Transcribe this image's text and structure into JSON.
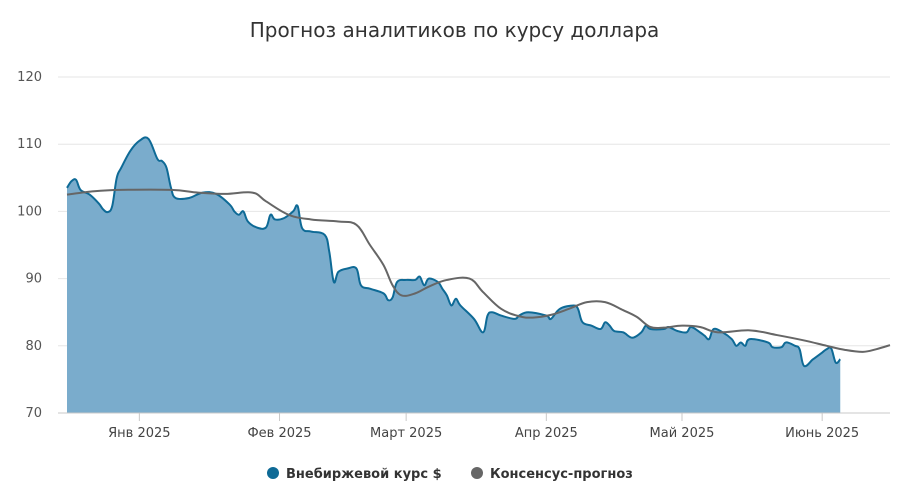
{
  "chart_data": {
    "type": "area",
    "title": "Прогноз аналитиков по курсу доллара",
    "xlabel": "",
    "ylabel": "",
    "ylim": [
      70,
      120
    ],
    "y_ticks": [
      70,
      80,
      90,
      100,
      110,
      120
    ],
    "x_tick_labels": [
      "Янв 2025",
      "Фев 2025",
      "Март 2025",
      "Апр 2025",
      "Май 2025",
      "Июнь 2025"
    ],
    "x_tick_dates": [
      "2025-01-01",
      "2025-02-01",
      "2025-03-01",
      "2025-04-01",
      "2025-05-01",
      "2025-06-01"
    ],
    "x_range": [
      "2024-12-16",
      "2025-06-16"
    ],
    "grid": true,
    "legend_position": "bottom",
    "series": [
      {
        "name": "Внебиржевой курс $",
        "type": "area",
        "color": "#0e6a96",
        "fill": "#7aaccc",
        "points": [
          [
            "2024-12-16",
            103.5
          ],
          [
            "2024-12-17",
            104.5
          ],
          [
            "2024-12-18",
            104.7
          ],
          [
            "2024-12-19",
            103.2
          ],
          [
            "2024-12-21",
            102.5
          ],
          [
            "2024-12-23",
            101.2
          ],
          [
            "2024-12-24",
            100.3
          ],
          [
            "2024-12-25",
            99.9
          ],
          [
            "2024-12-26",
            100.8
          ],
          [
            "2024-12-27",
            105.0
          ],
          [
            "2024-12-28",
            106.5
          ],
          [
            "2024-12-30",
            109.0
          ],
          [
            "2025-01-01",
            110.5
          ],
          [
            "2025-01-03",
            110.8
          ],
          [
            "2025-01-05",
            107.8
          ],
          [
            "2025-01-06",
            107.5
          ],
          [
            "2025-01-07",
            106.5
          ],
          [
            "2025-01-08",
            103.5
          ],
          [
            "2025-01-09",
            102.0
          ],
          [
            "2025-01-12",
            102.0
          ],
          [
            "2025-01-15",
            102.8
          ],
          [
            "2025-01-18",
            102.6
          ],
          [
            "2025-01-21",
            101.0
          ],
          [
            "2025-01-22",
            100.0
          ],
          [
            "2025-01-23",
            99.5
          ],
          [
            "2025-01-24",
            100.0
          ],
          [
            "2025-01-25",
            98.5
          ],
          [
            "2025-01-27",
            97.6
          ],
          [
            "2025-01-29",
            97.6
          ],
          [
            "2025-01-30",
            99.5
          ],
          [
            "2025-01-31",
            98.8
          ],
          [
            "2025-02-02",
            99.0
          ],
          [
            "2025-02-04",
            100.0
          ],
          [
            "2025-02-05",
            100.8
          ],
          [
            "2025-02-06",
            97.5
          ],
          [
            "2025-02-08",
            97.0
          ],
          [
            "2025-02-11",
            96.5
          ],
          [
            "2025-02-12",
            94.0
          ],
          [
            "2025-02-13",
            89.5
          ],
          [
            "2025-02-14",
            91.0
          ],
          [
            "2025-02-16",
            91.5
          ],
          [
            "2025-02-18",
            91.5
          ],
          [
            "2025-02-19",
            89.0
          ],
          [
            "2025-02-21",
            88.5
          ],
          [
            "2025-02-24",
            87.8
          ],
          [
            "2025-02-25",
            86.8
          ],
          [
            "2025-02-26",
            87.2
          ],
          [
            "2025-02-27",
            89.5
          ],
          [
            "2025-03-01",
            89.8
          ],
          [
            "2025-03-03",
            89.8
          ],
          [
            "2025-03-04",
            90.3
          ],
          [
            "2025-03-05",
            89.0
          ],
          [
            "2025-03-06",
            90.0
          ],
          [
            "2025-03-08",
            89.5
          ],
          [
            "2025-03-09",
            88.5
          ],
          [
            "2025-03-10",
            87.5
          ],
          [
            "2025-03-11",
            86.0
          ],
          [
            "2025-03-12",
            87.0
          ],
          [
            "2025-03-13",
            86.0
          ],
          [
            "2025-03-16",
            84.0
          ],
          [
            "2025-03-18",
            82.0
          ],
          [
            "2025-03-19",
            84.5
          ],
          [
            "2025-03-20",
            85.0
          ],
          [
            "2025-03-22",
            84.5
          ],
          [
            "2025-03-25",
            84.0
          ],
          [
            "2025-03-26",
            84.5
          ],
          [
            "2025-03-28",
            85.0
          ],
          [
            "2025-04-01",
            84.5
          ],
          [
            "2025-04-02",
            84.0
          ],
          [
            "2025-04-04",
            85.5
          ],
          [
            "2025-04-07",
            86.0
          ],
          [
            "2025-04-08",
            85.5
          ],
          [
            "2025-04-09",
            83.5
          ],
          [
            "2025-04-11",
            83.0
          ],
          [
            "2025-04-13",
            82.5
          ],
          [
            "2025-04-14",
            83.5
          ],
          [
            "2025-04-15",
            83.0
          ],
          [
            "2025-04-16",
            82.2
          ],
          [
            "2025-04-18",
            82.0
          ],
          [
            "2025-04-20",
            81.2
          ],
          [
            "2025-04-22",
            82.0
          ],
          [
            "2025-04-23",
            83.0
          ],
          [
            "2025-04-24",
            82.5
          ],
          [
            "2025-04-27",
            82.5
          ],
          [
            "2025-04-28",
            82.8
          ],
          [
            "2025-04-30",
            82.2
          ],
          [
            "2025-05-02",
            82.0
          ],
          [
            "2025-05-03",
            82.8
          ],
          [
            "2025-05-05",
            82.0
          ],
          [
            "2025-05-06",
            81.5
          ],
          [
            "2025-05-07",
            81.0
          ],
          [
            "2025-05-08",
            82.5
          ],
          [
            "2025-05-10",
            82.0
          ],
          [
            "2025-05-12",
            81.0
          ],
          [
            "2025-05-13",
            80.0
          ],
          [
            "2025-05-14",
            80.5
          ],
          [
            "2025-05-15",
            80.0
          ],
          [
            "2025-05-16",
            81.0
          ],
          [
            "2025-05-20",
            80.5
          ],
          [
            "2025-05-21",
            79.8
          ],
          [
            "2025-05-23",
            79.8
          ],
          [
            "2025-05-24",
            80.5
          ],
          [
            "2025-05-26",
            80.0
          ],
          [
            "2025-05-27",
            79.5
          ],
          [
            "2025-05-28",
            77.0
          ],
          [
            "2025-05-30",
            78.0
          ],
          [
            "2025-06-01",
            79.0
          ],
          [
            "2025-06-02",
            79.5
          ],
          [
            "2025-06-03",
            79.6
          ],
          [
            "2025-06-04",
            77.5
          ],
          [
            "2025-06-05",
            78.0
          ]
        ]
      },
      {
        "name": "Консенсус-прогноз",
        "type": "line",
        "color": "#666666",
        "points": [
          [
            "2024-12-16",
            102.5
          ],
          [
            "2024-12-22",
            103.0
          ],
          [
            "2024-12-28",
            103.2
          ],
          [
            "2025-01-08",
            103.2
          ],
          [
            "2025-01-14",
            102.8
          ],
          [
            "2025-01-20",
            102.6
          ],
          [
            "2025-01-26",
            102.8
          ],
          [
            "2025-01-29",
            101.5
          ],
          [
            "2025-02-03",
            99.5
          ],
          [
            "2025-02-08",
            98.8
          ],
          [
            "2025-02-14",
            98.5
          ],
          [
            "2025-02-18",
            98.0
          ],
          [
            "2025-02-21",
            95.0
          ],
          [
            "2025-02-24",
            92.0
          ],
          [
            "2025-02-26",
            89.0
          ],
          [
            "2025-02-28",
            87.5
          ],
          [
            "2025-03-03",
            87.8
          ],
          [
            "2025-03-06",
            88.8
          ],
          [
            "2025-03-10",
            89.8
          ],
          [
            "2025-03-15",
            90.0
          ],
          [
            "2025-03-18",
            88.0
          ],
          [
            "2025-03-22",
            85.5
          ],
          [
            "2025-03-26",
            84.4
          ],
          [
            "2025-03-29",
            84.2
          ],
          [
            "2025-04-02",
            84.6
          ],
          [
            "2025-04-06",
            85.5
          ],
          [
            "2025-04-10",
            86.5
          ],
          [
            "2025-04-14",
            86.5
          ],
          [
            "2025-04-18",
            85.3
          ],
          [
            "2025-04-21",
            84.3
          ],
          [
            "2025-04-24",
            82.8
          ],
          [
            "2025-04-27",
            82.7
          ],
          [
            "2025-05-01",
            83.0
          ],
          [
            "2025-05-05",
            82.8
          ],
          [
            "2025-05-09",
            82.0
          ],
          [
            "2025-05-16",
            82.3
          ],
          [
            "2025-05-22",
            81.6
          ],
          [
            "2025-05-28",
            80.8
          ],
          [
            "2025-06-02",
            80.0
          ],
          [
            "2025-06-06",
            79.4
          ],
          [
            "2025-06-10",
            79.1
          ],
          [
            "2025-06-13",
            79.5
          ],
          [
            "2025-06-16",
            80.1
          ]
        ]
      }
    ]
  }
}
